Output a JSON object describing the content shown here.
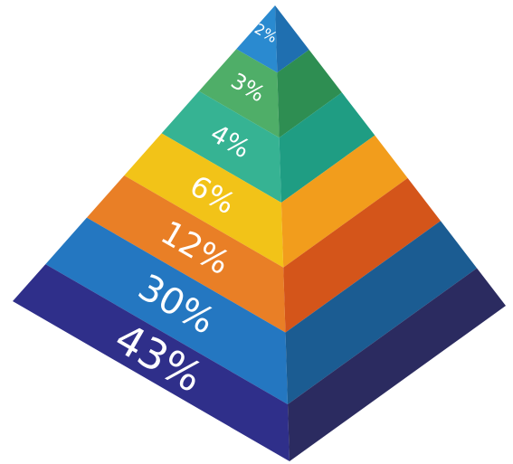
{
  "layers": [
    {
      "label": "2%",
      "value": 2,
      "front_color": "#2a8ad0",
      "side_color": "#1f6fb0"
    },
    {
      "label": "3%",
      "value": 3,
      "front_color": "#4fae68",
      "side_color": "#2e8e52"
    },
    {
      "label": "4%",
      "value": 4,
      "front_color": "#36b393",
      "side_color": "#1f9d83"
    },
    {
      "label": "6%",
      "value": 6,
      "front_color": "#f2c318",
      "side_color": "#f29d1c"
    },
    {
      "label": "12%",
      "value": 12,
      "front_color": "#e97f26",
      "side_color": "#d4551a"
    },
    {
      "label": "30%",
      "value": 30,
      "front_color": "#2477c1",
      "side_color": "#1b5c92"
    },
    {
      "label": "43%",
      "value": 43,
      "front_color": "#2f2f8a",
      "side_color": "#2b2b60"
    }
  ]
}
